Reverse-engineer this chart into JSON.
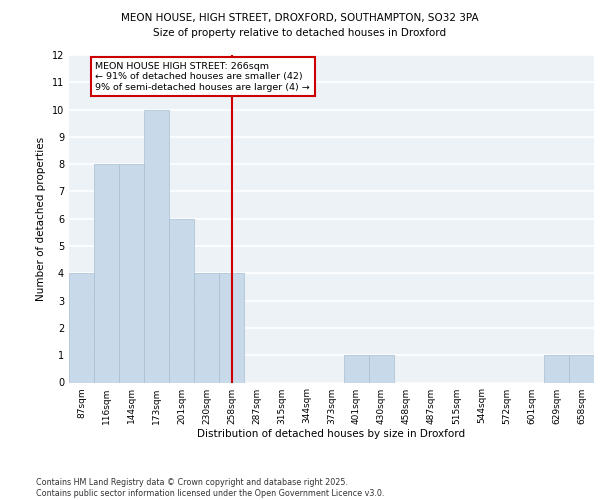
{
  "title1": "MEON HOUSE, HIGH STREET, DROXFORD, SOUTHAMPTON, SO32 3PA",
  "title2": "Size of property relative to detached houses in Droxford",
  "xlabel": "Distribution of detached houses by size in Droxford",
  "ylabel": "Number of detached properties",
  "categories": [
    "87sqm",
    "116sqm",
    "144sqm",
    "173sqm",
    "201sqm",
    "230sqm",
    "258sqm",
    "287sqm",
    "315sqm",
    "344sqm",
    "373sqm",
    "401sqm",
    "430sqm",
    "458sqm",
    "487sqm",
    "515sqm",
    "544sqm",
    "572sqm",
    "601sqm",
    "629sqm",
    "658sqm"
  ],
  "values": [
    4,
    8,
    8,
    10,
    6,
    4,
    4,
    0,
    0,
    0,
    0,
    1,
    1,
    0,
    0,
    0,
    0,
    0,
    0,
    1,
    1
  ],
  "bar_color": "#c8d9ea",
  "bar_edge_color": "#a8bfcf",
  "vline_x": 6,
  "vline_color": "#cc0000",
  "annotation_text": "MEON HOUSE HIGH STREET: 266sqm\n← 91% of detached houses are smaller (42)\n9% of semi-detached houses are larger (4) →",
  "annotation_box_color": "#ffffff",
  "annotation_box_edge_color": "#cc0000",
  "ylim": [
    0,
    12
  ],
  "yticks": [
    0,
    1,
    2,
    3,
    4,
    5,
    6,
    7,
    8,
    9,
    10,
    11,
    12
  ],
  "background_color": "#edf2f7",
  "grid_color": "#ffffff",
  "footer": "Contains HM Land Registry data © Crown copyright and database right 2025.\nContains public sector information licensed under the Open Government Licence v3.0."
}
